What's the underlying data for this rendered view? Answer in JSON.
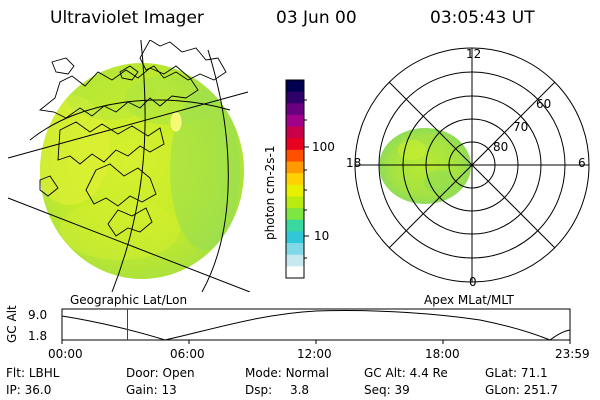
{
  "header": {
    "title": "Ultraviolet Imager",
    "date": "03 Jun 00",
    "time": "03:05:43 UT"
  },
  "colorbar": {
    "label": "photon cm-2s-1",
    "ticks": [
      "100",
      "10"
    ],
    "scale": "log",
    "colors": [
      "#000050",
      "#30006a",
      "#6a0080",
      "#a0008a",
      "#c8004a",
      "#e80020",
      "#ff5000",
      "#ff9a00",
      "#ffd200",
      "#e8f000",
      "#b8ec10",
      "#7ee640",
      "#38d8a0",
      "#30c8d8",
      "#80d8e8",
      "#c8e8f0",
      "#ffffff"
    ]
  },
  "panels": {
    "geo_label": "Geographic Lat/Lon",
    "apex_label": "Apex MLat/MLT"
  },
  "polar_plot": {
    "mlt_labels": {
      "top": "12",
      "left": "18",
      "right": "6",
      "bottom": "0"
    },
    "mlat_labels": [
      "60",
      "70",
      "80"
    ]
  },
  "altitude_strip": {
    "axis_label": "GC Alt",
    "y_ticks": [
      "9.0",
      "1.8"
    ],
    "time_ticks": [
      "00:00",
      "06:00",
      "12:00",
      "18:00",
      "23:59"
    ],
    "current_time_fraction": 0.129
  },
  "footer": {
    "row1": [
      {
        "label": "Flt:",
        "value": "LBHL"
      },
      {
        "label": "Door:",
        "value": "Open"
      },
      {
        "label": "Mode:",
        "value": "Normal"
      },
      {
        "label": "GC Alt:",
        "value": "4.4 Re"
      },
      {
        "label": "GLat:",
        "value": "71.1"
      }
    ],
    "row2": [
      {
        "label": "IP:",
        "value": "36.0"
      },
      {
        "label": "Gain:",
        "value": "13"
      },
      {
        "label": "Dsp:",
        "value": "3.8"
      },
      {
        "label": "Seq:",
        "value": "39"
      },
      {
        "label": "GLon:",
        "value": "251.7"
      }
    ]
  }
}
